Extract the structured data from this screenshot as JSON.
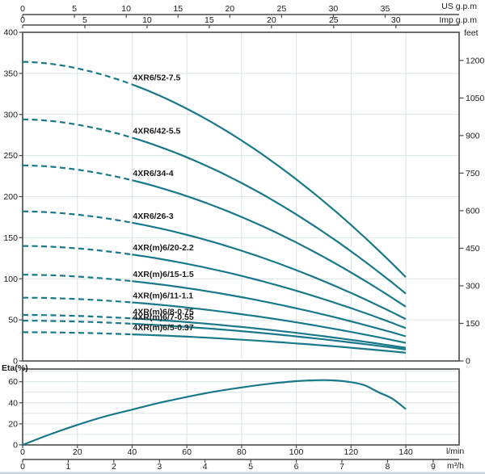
{
  "page": {
    "background": "#ffffff",
    "footer_strip_color": "#ccd7de"
  },
  "colors": {
    "curve": "#19798a",
    "grid": "#d9e4e1",
    "axis": "#4a4a4a",
    "text": "#1a1a1a"
  },
  "axes_labels": {
    "us_gpm": "US g.p.m",
    "imp_gpm": "Imp g.p.m",
    "feet": "feet",
    "eta": "Eta(%)",
    "lmin": "l/min",
    "m3h": "m³/h"
  },
  "chart_data": [
    {
      "type": "line",
      "name": "head-curves",
      "x_axes": [
        {
          "name": "US g.p.m",
          "lmin_per_unit": 3.785,
          "ticks": [
            0,
            5,
            10,
            15,
            20,
            25,
            30,
            35
          ]
        },
        {
          "name": "Imp g.p.m",
          "lmin_per_unit": 4.546,
          "ticks": [
            0,
            5,
            10,
            15,
            20,
            25,
            30
          ]
        },
        {
          "name": "l/min",
          "lmin_per_unit": 1,
          "ticks": [
            0,
            20,
            40,
            60,
            80,
            100,
            120,
            140
          ]
        },
        {
          "name": "m³/h",
          "lmin_per_unit": 16.667,
          "ticks": [
            0,
            1,
            2,
            3,
            4,
            5,
            6,
            7,
            8,
            9
          ]
        }
      ],
      "x_gridline_step_lmin": 20,
      "y_left": {
        "unit": "m",
        "min": 0,
        "max": 400,
        "ticks": [
          0,
          50,
          100,
          150,
          200,
          250,
          300,
          350,
          400
        ]
      },
      "y_right": {
        "unit": "feet",
        "ticks": [
          0,
          150,
          300,
          450,
          600,
          750,
          900,
          1050,
          1200
        ],
        "m_per_foot": 0.3048
      },
      "dashed_until_lmin": 40,
      "curve_shape_exponent": 1.8,
      "flows_lmin": [
        0,
        20,
        40,
        60,
        80,
        100,
        120,
        140
      ],
      "series": [
        {
          "name": "4XR6/52-7.5",
          "heads_m": [
            364,
            356,
            336,
            307,
            268,
            221,
            166,
            102
          ]
        },
        {
          "name": "4XR6/42-5.5",
          "heads_m": [
            294,
            288,
            272,
            248,
            216,
            178,
            134,
            82
          ]
        },
        {
          "name": "4XR6/34-4",
          "heads_m": [
            238,
            233,
            220,
            201,
            175,
            144,
            108,
            66
          ]
        },
        {
          "name": "4XR6/26-3",
          "heads_m": [
            182,
            178,
            168,
            154,
            134,
            110,
            83,
            51
          ]
        },
        {
          "name": "4XR(m)6/20-2.2",
          "heads_m": [
            140,
            137,
            130,
            118,
            104,
            85,
            64,
            40
          ]
        },
        {
          "name": "4XR(m)6/15-1.5",
          "heads_m": [
            105,
            103,
            97,
            89,
            78,
            64,
            48,
            30
          ]
        },
        {
          "name": "4XR(m)6/11-1.1",
          "heads_m": [
            77,
            75,
            71,
            65,
            57,
            47,
            35,
            22
          ]
        },
        {
          "name": "4XR(m)6/8-0.75",
          "heads_m": [
            56,
            55,
            52,
            47,
            41,
            34,
            26,
            16
          ]
        },
        {
          "name": "4XR(m)6/7-0.55",
          "heads_m": [
            49,
            48,
            45,
            41,
            36,
            30,
            23,
            14
          ]
        },
        {
          "name": "4XR(m)6/5-0.37",
          "heads_m": [
            35,
            34,
            32,
            30,
            26,
            21,
            16,
            10
          ]
        }
      ]
    },
    {
      "type": "line",
      "name": "efficiency",
      "ylabel": "Eta(%)",
      "y": {
        "min": 0,
        "max": 72,
        "ticks": [
          0,
          20,
          40,
          60
        ],
        "gridline_step": 10
      },
      "points_lmin_pct": [
        [
          0,
          0
        ],
        [
          10,
          10
        ],
        [
          20,
          19
        ],
        [
          30,
          27
        ],
        [
          40,
          33.5
        ],
        [
          50,
          40
        ],
        [
          60,
          45.5
        ],
        [
          70,
          50.5
        ],
        [
          80,
          54.5
        ],
        [
          90,
          58
        ],
        [
          100,
          60.5
        ],
        [
          105,
          61.2
        ],
        [
          110,
          61.5
        ],
        [
          115,
          61
        ],
        [
          120,
          59.5
        ],
        [
          125,
          56.5
        ],
        [
          130,
          50
        ],
        [
          135,
          44
        ],
        [
          140,
          34
        ]
      ]
    }
  ]
}
